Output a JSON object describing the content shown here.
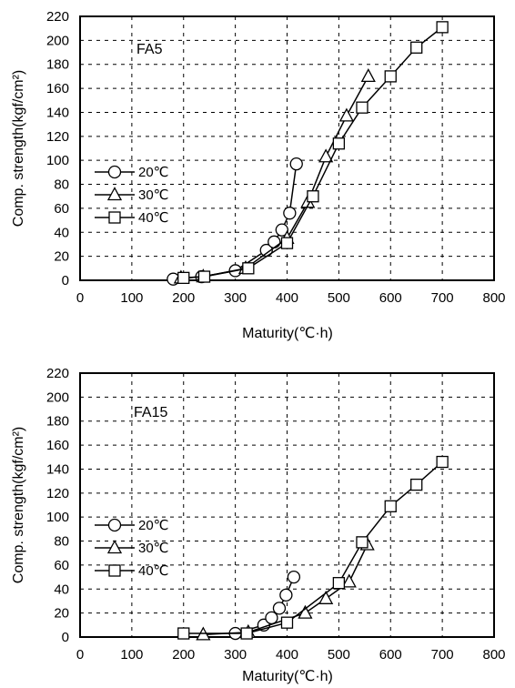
{
  "chart_data": [
    {
      "type": "line",
      "panel_label": "FA5",
      "xlabel": "Maturity(℃·h)",
      "ylabel": "Comp. strength(kgf/cm²)",
      "xlim": [
        0,
        800
      ],
      "ylim": [
        0,
        220
      ],
      "x_ticks": [
        0,
        100,
        200,
        300,
        400,
        500,
        600,
        700,
        800
      ],
      "y_ticks": [
        0,
        20,
        40,
        60,
        80,
        100,
        120,
        140,
        160,
        180,
        200,
        220
      ],
      "grid": true,
      "legend_position": "left-middle",
      "series": [
        {
          "name": "20℃",
          "marker": "circle",
          "x": [
            180,
            235,
            300,
            360,
            375,
            390,
            405,
            418
          ],
          "y": [
            1,
            3,
            8,
            25,
            32,
            42,
            56,
            97
          ]
        },
        {
          "name": "30℃",
          "marker": "triangle",
          "x": [
            195,
            238,
            320,
            400,
            440,
            475,
            515,
            557
          ],
          "y": [
            2,
            3,
            10,
            35,
            65,
            103,
            137,
            170
          ]
        },
        {
          "name": "40℃",
          "marker": "square",
          "x": [
            200,
            240,
            325,
            400,
            450,
            500,
            545,
            600,
            650,
            700
          ],
          "y": [
            2,
            3,
            10,
            31,
            70,
            114,
            144,
            170,
            194,
            211
          ]
        }
      ]
    },
    {
      "type": "line",
      "panel_label": "FA15",
      "xlabel": "Maturity(℃·h)",
      "ylabel": "Comp. strength(kgf/cm²)",
      "xlim": [
        0,
        800
      ],
      "ylim": [
        0,
        220
      ],
      "x_ticks": [
        0,
        100,
        200,
        300,
        400,
        500,
        600,
        700,
        800
      ],
      "y_ticks": [
        0,
        20,
        40,
        60,
        80,
        100,
        120,
        140,
        160,
        180,
        200,
        220
      ],
      "grid": true,
      "legend_position": "left-middle",
      "series": [
        {
          "name": "20℃",
          "marker": "circle",
          "x": [
            300,
            355,
            370,
            385,
            398,
            413
          ],
          "y": [
            3,
            10,
            16,
            24,
            35,
            50
          ]
        },
        {
          "name": "30℃",
          "marker": "triangle",
          "x": [
            238,
            325,
            435,
            475,
            520,
            555
          ],
          "y": [
            2,
            4,
            20,
            32,
            46,
            77
          ]
        },
        {
          "name": "40℃",
          "marker": "square",
          "x": [
            200,
            322,
            400,
            500,
            545,
            600,
            650,
            700
          ],
          "y": [
            3,
            3,
            12,
            45,
            79,
            109,
            127,
            146
          ]
        }
      ]
    }
  ]
}
